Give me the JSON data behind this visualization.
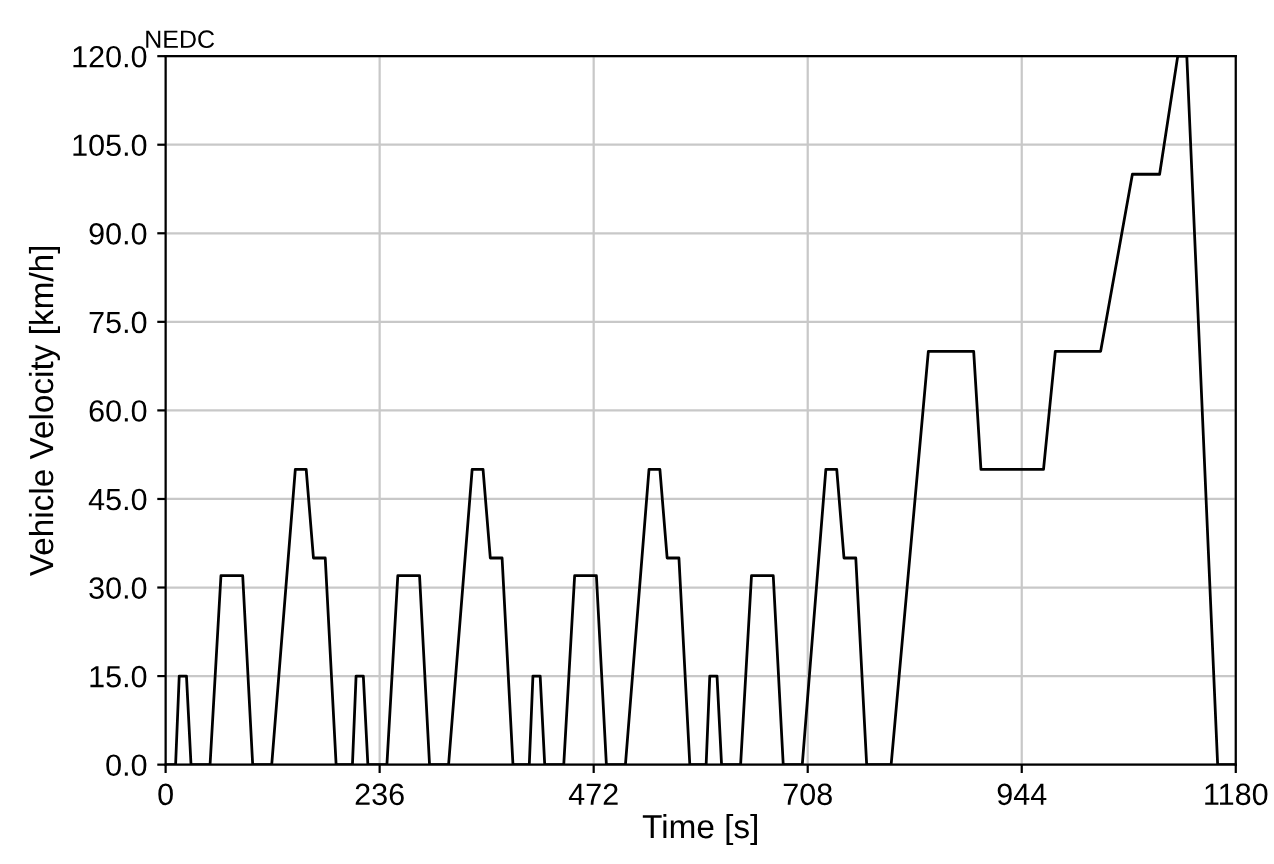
{
  "chart_data": {
    "type": "line",
    "title": "NEDC",
    "xlabel": "Time [s]",
    "ylabel": "Vehicle Velocity [km/h]",
    "x": [
      0,
      11,
      15,
      23,
      28,
      49,
      61,
      85,
      96,
      117,
      143,
      155,
      163,
      176,
      188,
      195,
      206,
      210,
      218,
      223,
      244,
      256,
      280,
      291,
      312,
      338,
      350,
      358,
      371,
      383,
      390,
      401,
      405,
      413,
      418,
      439,
      451,
      475,
      486,
      507,
      533,
      545,
      553,
      566,
      578,
      585,
      596,
      600,
      608,
      613,
      634,
      646,
      670,
      681,
      702,
      728,
      740,
      748,
      761,
      773,
      800,
      841,
      891,
      899,
      968,
      981,
      1031,
      1066,
      1096,
      1116,
      1126,
      1160,
      1180
    ],
    "series": [
      {
        "color": "#000000",
        "values": [
          0,
          0,
          15,
          15,
          0,
          0,
          32,
          32,
          0,
          0,
          50,
          50,
          35,
          35,
          0,
          0,
          0,
          15,
          15,
          0,
          0,
          32,
          32,
          0,
          0,
          50,
          50,
          35,
          35,
          0,
          0,
          0,
          15,
          15,
          0,
          0,
          32,
          32,
          0,
          0,
          50,
          50,
          35,
          35,
          0,
          0,
          0,
          15,
          15,
          0,
          0,
          32,
          32,
          0,
          0,
          50,
          50,
          35,
          35,
          0,
          0,
          70,
          70,
          50,
          50,
          70,
          70,
          100,
          100,
          120,
          120,
          0,
          0
        ]
      }
    ],
    "xlim": [
      0,
      1180
    ],
    "xticks": [
      0,
      236,
      472,
      708,
      944,
      1180
    ],
    "ylim": [
      0,
      120
    ],
    "yticks": [
      {
        "value": 0,
        "label": "0.0"
      },
      {
        "value": 15,
        "label": "15.0"
      },
      {
        "value": 30,
        "label": "30.0"
      },
      {
        "value": 45,
        "label": "45.0"
      },
      {
        "value": 60,
        "label": "60.0"
      },
      {
        "value": 75,
        "label": "75.0"
      },
      {
        "value": 90,
        "label": "90.0"
      },
      {
        "value": 105,
        "label": "105.0"
      },
      {
        "value": 120,
        "label": "120.0"
      }
    ],
    "grid": true,
    "line_style": "solid",
    "marker": "none"
  }
}
